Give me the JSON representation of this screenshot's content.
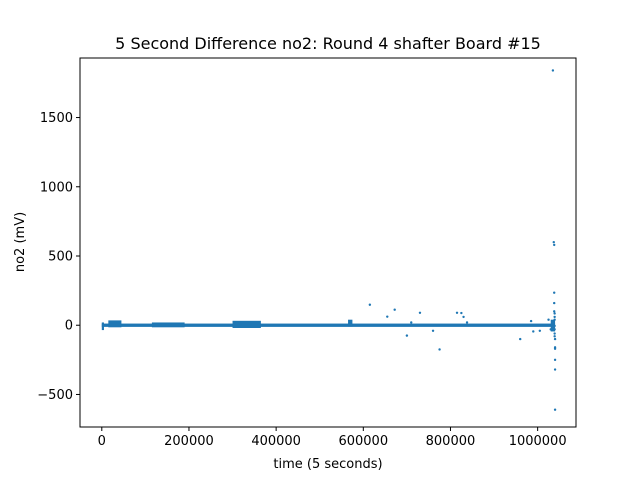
{
  "chart_data": {
    "type": "scatter",
    "title": "5 Second Difference no2: Round 4 shafter Board #15",
    "xlabel": "time (5 seconds)",
    "ylabel": "no2 (mV)",
    "xlim": [
      -50000,
      1088000
    ],
    "ylim": [
      -735,
      1930
    ],
    "xticks": [
      0,
      200000,
      400000,
      600000,
      800000,
      1000000
    ],
    "xtick_labels": [
      "0",
      "200000",
      "400000",
      "600000",
      "800000",
      "1000000"
    ],
    "yticks": [
      -500,
      0,
      500,
      1000,
      1500
    ],
    "ytick_labels": [
      "−500",
      "0",
      "500",
      "1000",
      "1500"
    ],
    "grid": false,
    "marker_color": "#1f77b4",
    "band": {
      "x_range": [
        0,
        1040000
      ],
      "y_range": [
        -12,
        12
      ]
    },
    "dense_clusters": [
      {
        "x_range": [
          0,
          5000
        ],
        "y_range": [
          -35,
          20
        ]
      },
      {
        "x_range": [
          15000,
          45000
        ],
        "y_range": [
          -15,
          35
        ]
      },
      {
        "x_range": [
          115000,
          190000
        ],
        "y_range": [
          -15,
          20
        ]
      },
      {
        "x_range": [
          300000,
          365000
        ],
        "y_range": [
          -20,
          32
        ]
      },
      {
        "x_range": [
          565000,
          575000
        ],
        "y_range": [
          -10,
          40
        ]
      },
      {
        "x_range": [
          1030000,
          1040000
        ],
        "y_range": [
          -45,
          40
        ]
      }
    ],
    "outliers": {
      "x": [
        615000,
        672000,
        730000,
        700000,
        710000,
        815000,
        825000,
        830000,
        760000,
        775000,
        655000,
        838000,
        960000,
        985000,
        990000,
        1005000,
        1025000,
        1030000,
        1035000,
        1037000,
        1038000,
        1038000,
        1038000,
        1038000,
        1039000,
        1039000,
        1039000,
        1039000,
        1039000,
        1039000,
        1039000,
        1040000,
        1040000,
        1040000,
        1040000,
        1040000,
        1040000
      ],
      "y": [
        148,
        112,
        90,
        -75,
        20,
        90,
        88,
        60,
        -40,
        -175,
        62,
        20,
        -100,
        30,
        -45,
        -40,
        40,
        -30,
        1840,
        600,
        580,
        235,
        160,
        100,
        85,
        60,
        40,
        -5,
        -30,
        -60,
        -80,
        -100,
        -160,
        -170,
        -250,
        -320,
        -610
      ]
    }
  }
}
